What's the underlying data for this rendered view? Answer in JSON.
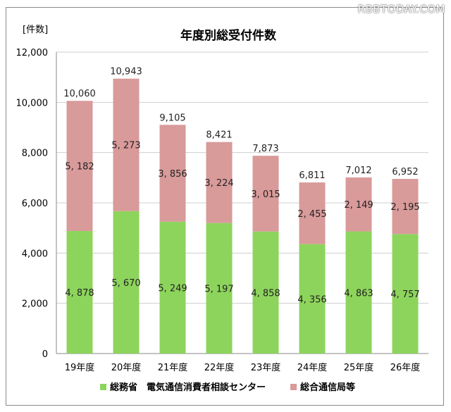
{
  "watermark": "RBBTODAY.COM",
  "chart_data": {
    "type": "bar",
    "stacked": true,
    "title": "年度別総受付件数",
    "unit_label": "[件数]",
    "categories": [
      "19年度",
      "20年度",
      "21年度",
      "22年度",
      "23年度",
      "24年度",
      "25年度",
      "26年度"
    ],
    "series": [
      {
        "name": "総務省　電気通信消費者相談センター",
        "color": "#8dd45c",
        "values": [
          4878,
          5670,
          5249,
          5197,
          4858,
          4356,
          4863,
          4757
        ],
        "labels": [
          "4, 878",
          "5, 670",
          "5, 249",
          "5, 197",
          "4, 858",
          "4, 356",
          "4, 863",
          "4, 757"
        ]
      },
      {
        "name": "総合通信局等",
        "color": "#d99a9a",
        "values": [
          5182,
          5273,
          3856,
          3224,
          3015,
          2455,
          2149,
          2195
        ],
        "labels": [
          "5, 182",
          "5, 273",
          "3, 856",
          "3, 224",
          "3, 015",
          "2, 455",
          "2, 149",
          "2, 195"
        ]
      }
    ],
    "totals": [
      "10,060",
      "10,943",
      "9,105",
      "8,421",
      "7,873",
      "6,811",
      "7,012",
      "6,952"
    ],
    "ylim": [
      0,
      12000
    ],
    "yticks": [
      0,
      2000,
      4000,
      6000,
      8000,
      10000,
      12000
    ],
    "ytick_labels": [
      "0",
      "2,000",
      "4,000",
      "6,000",
      "8,000",
      "10,000",
      "12,000"
    ],
    "grid": true,
    "legend": "bottom"
  }
}
